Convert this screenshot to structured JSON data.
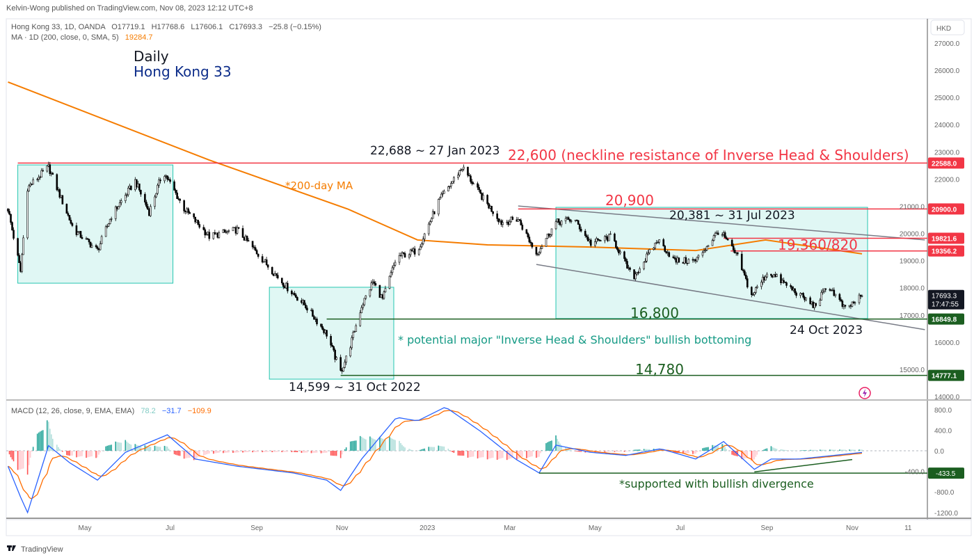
{
  "publisher_line": "Kelvin-Wong published on TradingView.com, Nov 08, 2023 12:12 UTC+8",
  "legend": {
    "symbol_line": "Hong Kong 33, 1D, OANDA",
    "open": "O17719.1",
    "high": "H17768.6",
    "low": "L17606.1",
    "close": "C17693.3",
    "change": "−25.8 (−0.15%)",
    "ma_line": "MA · 1D (200, close, 0, SMA, 5)",
    "ma_value": "19284.7",
    "macd_line": "MACD (12, 26, close, 9, EMA, EMA)",
    "macd_hist_value": "78.2",
    "macd_value": "−31.7",
    "signal_value": "−109.9"
  },
  "titles": {
    "timeframe": "Daily",
    "instrument": "Hong Kong 33"
  },
  "currency": "HKD",
  "footer_brand": "TradingView",
  "colors": {
    "red": "#f23645",
    "green": "#1b5e20",
    "box": "#e0f7f4",
    "box_border": "#26c6b0",
    "ma": "#f57c00",
    "macd": "#2962ff",
    "signal": "#ff6d00",
    "teal_text": "#159a85",
    "navy": "#0d2d8a"
  },
  "chart_data": [
    {
      "type": "candlestick",
      "title": "",
      "y_axis": {
        "range": [
          13800,
          27400
        ],
        "ticks": [
          "27000.0",
          "26000.0",
          "25000.0",
          "24000.0",
          "23000.0",
          "22000.0",
          "21000.0",
          "20000.0",
          "19000.0",
          "18000.0",
          "17000.0",
          "16000.0",
          "15000.0",
          "14000.0"
        ]
      },
      "x_axis": {
        "ticks": [
          {
            "label": "May",
            "date": "2022-05-01"
          },
          {
            "label": "Jul",
            "date": "2022-07-01"
          },
          {
            "label": "Sep",
            "date": "2022-09-01"
          },
          {
            "label": "Nov",
            "date": "2022-11-01"
          },
          {
            "label": "2023",
            "date": "2023-01-01"
          },
          {
            "label": "Mar",
            "date": "2023-03-01"
          },
          {
            "label": "May",
            "date": "2023-05-01"
          },
          {
            "label": "Jul",
            "date": "2023-07-01"
          },
          {
            "label": "Sep",
            "date": "2023-09-01"
          },
          {
            "label": "Nov",
            "date": "2023-11-01"
          },
          {
            "label": "11",
            "date": "2023-12-11"
          }
        ]
      },
      "closes": [
        [
          "2022-03-07",
          20900
        ],
        [
          "2022-03-16",
          18600
        ],
        [
          "2022-03-21",
          21680
        ],
        [
          "2022-04-05",
          22440
        ],
        [
          "2022-04-23",
          20140
        ],
        [
          "2022-05-10",
          19380
        ],
        [
          "2022-05-20",
          20650
        ],
        [
          "2022-06-06",
          21930
        ],
        [
          "2022-06-16",
          20780
        ],
        [
          "2022-06-26",
          22300
        ],
        [
          "2022-07-11",
          20910
        ],
        [
          "2022-07-29",
          19890
        ],
        [
          "2022-08-18",
          20140
        ],
        [
          "2022-09-06",
          18990
        ],
        [
          "2022-09-21",
          18100
        ],
        [
          "2022-10-06",
          17330
        ],
        [
          "2022-10-21",
          16300
        ],
        [
          "2022-10-31",
          14900
        ],
        [
          "2022-11-05",
          15540
        ],
        [
          "2022-11-15",
          17330
        ],
        [
          "2022-11-23",
          18220
        ],
        [
          "2022-11-30",
          17580
        ],
        [
          "2022-12-10",
          19120
        ],
        [
          "2022-12-25",
          19380
        ],
        [
          "2023-01-09",
          21170
        ],
        [
          "2023-01-26",
          22440
        ],
        [
          "2023-02-08",
          21420
        ],
        [
          "2023-02-23",
          20400
        ],
        [
          "2023-03-07",
          20530
        ],
        [
          "2023-03-20",
          19250
        ],
        [
          "2023-04-03",
          20400
        ],
        [
          "2023-04-16",
          20530
        ],
        [
          "2023-04-28",
          19630
        ],
        [
          "2023-05-13",
          19890
        ],
        [
          "2023-05-28",
          18350
        ],
        [
          "2023-06-15",
          19760
        ],
        [
          "2023-06-27",
          18990
        ],
        [
          "2023-07-12",
          18990
        ],
        [
          "2023-07-29",
          20140
        ],
        [
          "2023-08-11",
          19120
        ],
        [
          "2023-08-21",
          17710
        ],
        [
          "2023-09-02",
          18600
        ],
        [
          "2023-09-15",
          18100
        ],
        [
          "2023-10-05",
          17330
        ],
        [
          "2023-10-15",
          18100
        ],
        [
          "2023-10-27",
          17200
        ],
        [
          "2023-11-08",
          17693.3
        ]
      ],
      "ma200": [
        [
          "2022-03-07",
          25570
        ],
        [
          "2022-07-29",
          22700
        ],
        [
          "2022-11-05",
          20900
        ],
        [
          "2022-12-25",
          19760
        ],
        [
          "2023-02-13",
          19580
        ],
        [
          "2023-04-28",
          19500
        ],
        [
          "2023-07-12",
          19370
        ],
        [
          "2023-08-31",
          19760
        ],
        [
          "2023-11-08",
          19250
        ]
      ],
      "levels": [
        {
          "price": 22588.0,
          "label": "22588.0",
          "color": "red",
          "from": "2022-03-14"
        },
        {
          "price": 20900.0,
          "label": "20900.0",
          "color": "red",
          "from": "2023-03-07"
        },
        {
          "price": 19821.6,
          "label": "19821.6",
          "color": "red",
          "from": "2023-08-01"
        },
        {
          "price": 19356.2,
          "label": "19356.2",
          "color": "red",
          "from": "2023-08-06"
        },
        {
          "price": 16849.8,
          "label": "16849.8",
          "color": "green",
          "from": "2022-10-21"
        },
        {
          "price": 14777.1,
          "label": "14777.1",
          "color": "green",
          "from": "2022-10-31"
        }
      ],
      "last_price": {
        "label": "17693.3",
        "countdown": "17:47:55",
        "price": 17693.3
      },
      "boxes": [
        {
          "from": "2022-03-14",
          "to": "2022-07-03",
          "top": 22520,
          "bottom": 18170
        },
        {
          "from": "2022-09-10",
          "to": "2022-12-08",
          "top": 18020,
          "bottom": 14640
        },
        {
          "from": "2023-04-03",
          "to": "2023-11-12",
          "top": 20960,
          "bottom": 16870
        }
      ],
      "trendlines": [
        {
          "from": [
            "2023-03-07",
            21010
          ],
          "to": [
            "2023-12-23",
            19760
          ]
        },
        {
          "from": [
            "2023-03-20",
            18860
          ],
          "to": [
            "2023-12-23",
            16460
          ]
        }
      ],
      "annotations": [
        {
          "text": "22,688 ~ 27 Jan 2023",
          "color": "#131722"
        },
        {
          "text": "22,600 (neckline resistance of Inverse Head & Shoulders)",
          "color": "#f23645"
        },
        {
          "text": "*200-day MA",
          "color": "#f57c00"
        },
        {
          "text": "20,900",
          "color": "#f23645"
        },
        {
          "text": "20,381 ~ 31 Jul 2023",
          "color": "#131722"
        },
        {
          "text": "19,360/820",
          "color": "#f23645"
        },
        {
          "text": "16,800",
          "color": "#1b5e20"
        },
        {
          "text": "24 Oct 2023",
          "color": "#131722"
        },
        {
          "text": "* potential major \"Inverse Head & Shoulders\" bullish bottoming",
          "color": "#159a85"
        },
        {
          "text": "14,780",
          "color": "#1b5e20"
        },
        {
          "text": "14,599 ~ 31 Oct 2022",
          "color": "#131722"
        }
      ]
    },
    {
      "type": "macd",
      "y_axis": {
        "ticks": [
          "800.0",
          "400.0",
          "0.0",
          "-400.0",
          "-800.0",
          "-1200.0"
        ],
        "tick_values": [
          800,
          400,
          0,
          -400,
          -800,
          -1200
        ]
      },
      "macd": [
        [
          "2022-03-07",
          -300
        ],
        [
          "2022-03-16",
          -900
        ],
        [
          "2022-03-21",
          -1200
        ],
        [
          "2022-04-05",
          100
        ],
        [
          "2022-04-20",
          -230
        ],
        [
          "2022-05-10",
          -570
        ],
        [
          "2022-05-30",
          -30
        ],
        [
          "2022-06-29",
          310
        ],
        [
          "2022-07-19",
          -160
        ],
        [
          "2022-08-18",
          -300
        ],
        [
          "2022-09-27",
          -430
        ],
        [
          "2022-10-21",
          -570
        ],
        [
          "2022-10-31",
          -770
        ],
        [
          "2022-11-15",
          -160
        ],
        [
          "2022-12-10",
          650
        ],
        [
          "2022-12-25",
          580
        ],
        [
          "2023-01-14",
          850
        ],
        [
          "2023-02-08",
          380
        ],
        [
          "2023-03-05",
          -160
        ],
        [
          "2023-03-22",
          -430
        ],
        [
          "2023-04-03",
          110
        ],
        [
          "2023-04-28",
          -30
        ],
        [
          "2023-05-23",
          -90
        ],
        [
          "2023-06-17",
          40
        ],
        [
          "2023-07-12",
          -160
        ],
        [
          "2023-08-01",
          180
        ],
        [
          "2023-08-23",
          -360
        ],
        [
          "2023-09-04",
          -160
        ],
        [
          "2023-09-24",
          -160
        ],
        [
          "2023-10-19",
          -90
        ],
        [
          "2023-11-08",
          -31.7
        ]
      ],
      "level": {
        "value": -433.5,
        "label": "-433.5",
        "from": "2023-03-22"
      },
      "divergence_line": {
        "from": [
          "2023-08-23",
          -410
        ],
        "to": [
          "2023-11-01",
          -170
        ]
      },
      "annotation": {
        "text": "*supported with bullish divergence",
        "color": "#1b5e20"
      }
    }
  ]
}
